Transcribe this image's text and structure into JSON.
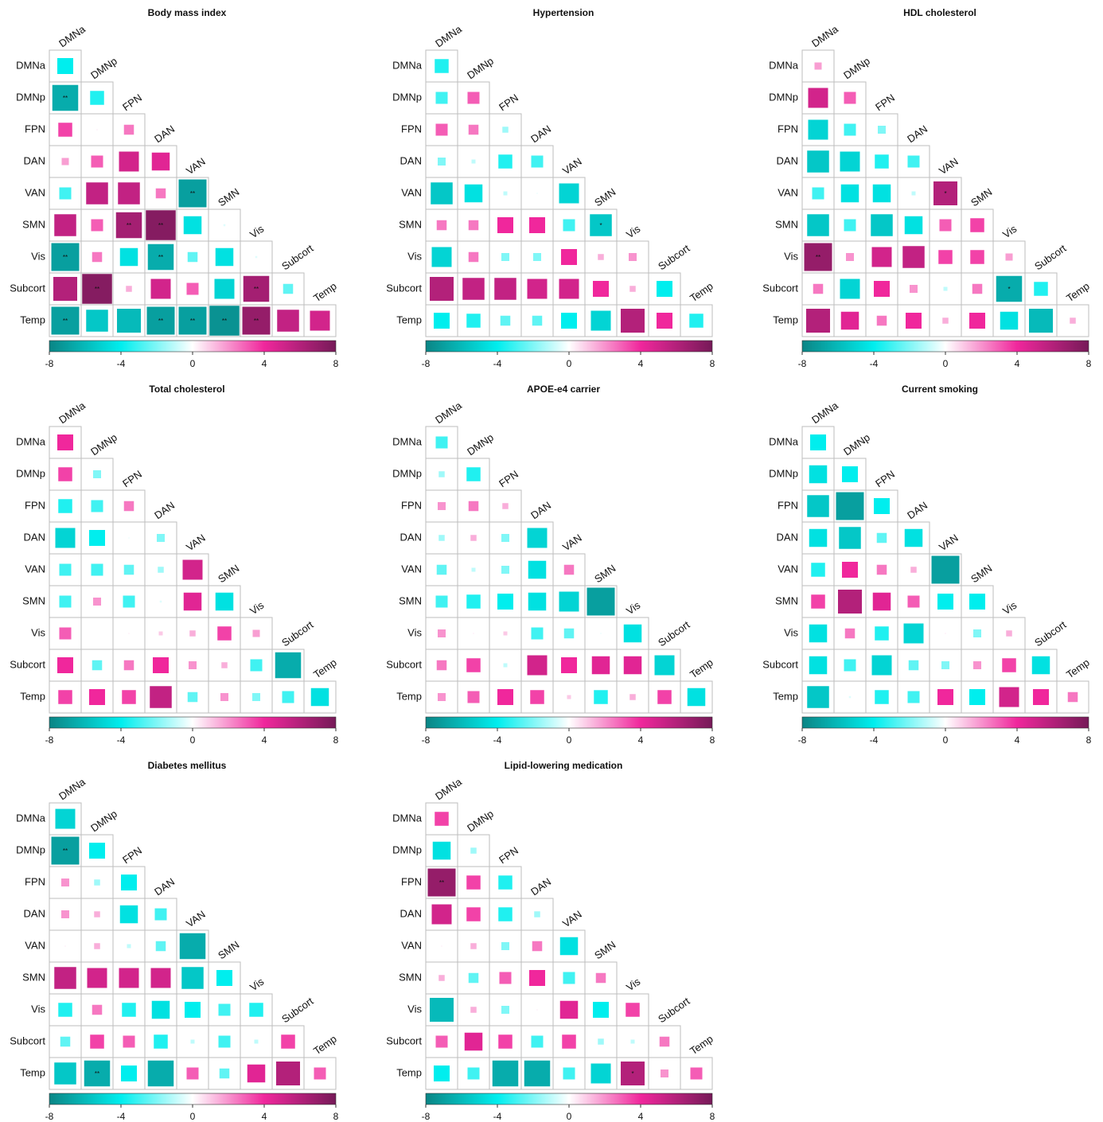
{
  "chart_data": [
    {
      "type": "heatmap",
      "title": "Body mass index",
      "labels": [
        "DMNa",
        "DMNp",
        "FPN",
        "DAN",
        "VAN",
        "SMN",
        "Vis",
        "Subcort",
        "Temp"
      ],
      "values": [
        [
          -4
        ],
        [
          -6.5,
          -3.5
        ],
        [
          3.5,
          0.3,
          2.5
        ],
        [
          1.8,
          3,
          5,
          4.5
        ],
        [
          -3,
          5.5,
          5.5,
          2.5,
          -7
        ],
        [
          5.5,
          3,
          6.5,
          7.5,
          -4.5,
          -0.5
        ],
        [
          -7,
          2.5,
          -4.5,
          -6.5,
          -2.5,
          -4.5,
          -0.5
        ],
        [
          6,
          7.5,
          1.5,
          5,
          3,
          -5,
          6.5,
          -2.5
        ],
        [
          -7,
          -5.5,
          -6,
          -7,
          -7,
          -7.5,
          7,
          5.5,
          5
        ]
      ],
      "annotations": [
        {
          "row": 1,
          "col": 0,
          "text": "**"
        },
        {
          "row": 4,
          "col": 4,
          "text": "**"
        },
        {
          "row": 5,
          "col": 2,
          "text": "**"
        },
        {
          "row": 5,
          "col": 3,
          "text": "**"
        },
        {
          "row": 6,
          "col": 0,
          "text": "**"
        },
        {
          "row": 6,
          "col": 3,
          "text": "**"
        },
        {
          "row": 7,
          "col": 1,
          "text": "**"
        },
        {
          "row": 7,
          "col": 6,
          "text": "**"
        },
        {
          "row": 8,
          "col": 0,
          "text": "**"
        },
        {
          "row": 8,
          "col": 3,
          "text": "**"
        },
        {
          "row": 8,
          "col": 4,
          "text": "**"
        },
        {
          "row": 8,
          "col": 5,
          "text": "**"
        },
        {
          "row": 8,
          "col": 6,
          "text": "**"
        }
      ],
      "zlim": [
        -8,
        8
      ],
      "zticks": [
        -8,
        -4,
        0,
        4,
        8
      ],
      "colorscale": [
        [
          -8,
          "#0b8585"
        ],
        [
          -4,
          "#00eeee"
        ],
        [
          0,
          "#ffffff"
        ],
        [
          4,
          "#f0279c"
        ],
        [
          8,
          "#761a58"
        ]
      ]
    },
    {
      "type": "heatmap",
      "title": "Hypertension",
      "labels": [
        "DMNa",
        "DMNp",
        "FPN",
        "DAN",
        "VAN",
        "SMN",
        "Vis",
        "Subcort",
        "Temp"
      ],
      "values": [
        [
          -3.5
        ],
        [
          -3,
          3
        ],
        [
          3,
          2.5,
          -1.5
        ],
        [
          -2,
          -1,
          -3.5,
          -3
        ],
        [
          -5.5,
          -4.5,
          -1,
          -0.3,
          -5
        ],
        [
          2.5,
          2.5,
          4,
          4,
          -3,
          -5.5
        ],
        [
          -5,
          2.5,
          -2,
          -2,
          4,
          1.5,
          2
        ],
        [
          6,
          5.5,
          5.5,
          5,
          5,
          4,
          1.5,
          -4
        ],
        [
          -4,
          -3.5,
          -2.5,
          -2.5,
          -4,
          -5,
          6,
          4,
          -3.5
        ]
      ],
      "annotations": [
        {
          "row": 5,
          "col": 5,
          "text": "*"
        }
      ],
      "zlim": [
        -8,
        8
      ],
      "zticks": [
        -8,
        -4,
        0,
        4,
        8
      ],
      "colorscale": [
        [
          -8,
          "#0b8585"
        ],
        [
          -4,
          "#00eeee"
        ],
        [
          0,
          "#ffffff"
        ],
        [
          4,
          "#f0279c"
        ],
        [
          8,
          "#761a58"
        ]
      ]
    },
    {
      "type": "heatmap",
      "title": "HDL cholesterol",
      "labels": [
        "DMNa",
        "DMNp",
        "FPN",
        "DAN",
        "VAN",
        "SMN",
        "Vis",
        "Subcort",
        "Temp"
      ],
      "values": [
        [
          1.8
        ],
        [
          5,
          3
        ],
        [
          -5,
          -3,
          -2
        ],
        [
          -5.5,
          -5,
          -3.5,
          -3
        ],
        [
          -3,
          -4.5,
          -4.5,
          -1,
          6
        ],
        [
          -5.5,
          -3,
          -5.5,
          -4.5,
          3,
          3.5
        ],
        [
          7,
          2,
          5,
          5.5,
          3.5,
          3.5,
          1.8
        ],
        [
          2.5,
          -5,
          4,
          2,
          -1,
          2.5,
          -6.5,
          -3.5
        ],
        [
          6,
          4.5,
          2.5,
          4,
          1.5,
          4,
          -4.5,
          -6,
          1.5
        ]
      ],
      "annotations": [
        {
          "row": 4,
          "col": 4,
          "text": "*"
        },
        {
          "row": 6,
          "col": 0,
          "text": "**"
        },
        {
          "row": 7,
          "col": 6,
          "text": "*"
        }
      ],
      "zlim": [
        -8,
        8
      ],
      "zticks": [
        -8,
        -4,
        0,
        4,
        8
      ],
      "colorscale": [
        [
          -8,
          "#0b8585"
        ],
        [
          -4,
          "#00eeee"
        ],
        [
          0,
          "#ffffff"
        ],
        [
          4,
          "#f0279c"
        ],
        [
          8,
          "#761a58"
        ]
      ]
    },
    {
      "type": "heatmap",
      "title": "Total cholesterol",
      "labels": [
        "DMNa",
        "DMNp",
        "FPN",
        "DAN",
        "VAN",
        "SMN",
        "Vis",
        "Subcort",
        "Temp"
      ],
      "values": [
        [
          4
        ],
        [
          3.5,
          -2
        ],
        [
          -3.5,
          -3,
          2.5
        ],
        [
          -5,
          -4,
          -0.3,
          -2
        ],
        [
          -3,
          -3,
          -2.5,
          -1.5,
          5
        ],
        [
          -3,
          2,
          -3,
          -0.5,
          4.5,
          -4.5
        ],
        [
          3,
          0,
          0.3,
          1,
          1.5,
          3.5,
          1.8
        ],
        [
          4,
          -2.5,
          2.5,
          4,
          2,
          1.5,
          -3,
          -6.5
        ],
        [
          3.5,
          4,
          3.5,
          5.5,
          -2.5,
          2,
          -2,
          -3,
          -4.5
        ]
      ],
      "annotations": [],
      "zlim": [
        -8,
        8
      ],
      "zticks": [
        -8,
        -4,
        0,
        4,
        8
      ],
      "colorscale": [
        [
          -8,
          "#0b8585"
        ],
        [
          -4,
          "#00eeee"
        ],
        [
          0,
          "#ffffff"
        ],
        [
          4,
          "#f0279c"
        ],
        [
          8,
          "#761a58"
        ]
      ]
    },
    {
      "type": "heatmap",
      "title": "APOE-e4 carrier",
      "labels": [
        "DMNa",
        "DMNp",
        "FPN",
        "DAN",
        "VAN",
        "SMN",
        "Vis",
        "Subcort",
        "Temp"
      ],
      "values": [
        [
          -3
        ],
        [
          -1.5,
          -3.5
        ],
        [
          2,
          2.5,
          1.5
        ],
        [
          -1.5,
          1.5,
          -2,
          -5
        ],
        [
          -2.5,
          -1,
          -2,
          -4.5,
          2.5
        ],
        [
          -3,
          -3.5,
          -4,
          -4.5,
          -5,
          -7
        ],
        [
          2,
          0.3,
          1,
          -3,
          -2.5,
          -0.3,
          -4.5
        ],
        [
          2.5,
          3.5,
          -1,
          5,
          4,
          4.5,
          4.5,
          -5
        ],
        [
          2,
          3,
          4,
          3.5,
          1,
          -3.5,
          1.5,
          3.5,
          -4.5
        ]
      ],
      "annotations": [],
      "zlim": [
        -8,
        8
      ],
      "zticks": [
        -8,
        -4,
        0,
        4,
        8
      ],
      "colorscale": [
        [
          -8,
          "#0b8585"
        ],
        [
          -4,
          "#00eeee"
        ],
        [
          0,
          "#ffffff"
        ],
        [
          4,
          "#f0279c"
        ],
        [
          8,
          "#761a58"
        ]
      ]
    },
    {
      "type": "heatmap",
      "title": "Current smoking",
      "labels": [
        "DMNa",
        "DMNp",
        "FPN",
        "DAN",
        "VAN",
        "SMN",
        "Vis",
        "Subcort",
        "Temp"
      ],
      "values": [
        [
          -4
        ],
        [
          -4.5,
          -4
        ],
        [
          -5.5,
          -7,
          -4
        ],
        [
          -4.5,
          -5.5,
          -2.5,
          -4.5
        ],
        [
          -3.5,
          4,
          2.5,
          1.5,
          -7
        ],
        [
          3.5,
          6,
          4.5,
          3,
          -4,
          -4
        ],
        [
          -4.5,
          2.5,
          -3.5,
          -5,
          0.3,
          -2,
          1.5
        ],
        [
          -4.5,
          -3,
          -5,
          -2.5,
          -2,
          2,
          3.5,
          -4.5
        ],
        [
          -5.5,
          -0.5,
          -3.5,
          -3,
          4,
          -4,
          5,
          4,
          2.5
        ]
      ],
      "annotations": [],
      "zlim": [
        -8,
        8
      ],
      "zticks": [
        -8,
        -4,
        0,
        4,
        8
      ],
      "colorscale": [
        [
          -8,
          "#0b8585"
        ],
        [
          -4,
          "#00eeee"
        ],
        [
          0,
          "#ffffff"
        ],
        [
          4,
          "#f0279c"
        ],
        [
          8,
          "#761a58"
        ]
      ]
    },
    {
      "type": "heatmap",
      "title": "Diabetes mellitus",
      "labels": [
        "DMNa",
        "DMNp",
        "FPN",
        "DAN",
        "VAN",
        "SMN",
        "Vis",
        "Subcort",
        "Temp"
      ],
      "values": [
        [
          -5
        ],
        [
          -7,
          -4
        ],
        [
          2,
          -1.5,
          -4
        ],
        [
          2,
          1.5,
          -4.5,
          -3
        ],
        [
          0.3,
          1.5,
          -1,
          -2.5,
          -6.5
        ],
        [
          5.5,
          5,
          5,
          5,
          -5.5,
          -4
        ],
        [
          -3.5,
          2.5,
          -3.5,
          -4.5,
          -4,
          -3,
          -3.5
        ],
        [
          -2.5,
          3.5,
          3,
          -3.5,
          -1,
          -3,
          -1,
          3.5
        ],
        [
          -5.5,
          -6.5,
          -4,
          -6.5,
          3,
          -2.5,
          4.5,
          6,
          3
        ]
      ],
      "annotations": [
        {
          "row": 1,
          "col": 0,
          "text": "**"
        },
        {
          "row": 8,
          "col": 1,
          "text": "**"
        }
      ],
      "zlim": [
        -8,
        8
      ],
      "zticks": [
        -8,
        -4,
        0,
        4,
        8
      ],
      "colorscale": [
        [
          -8,
          "#0b8585"
        ],
        [
          -4,
          "#00eeee"
        ],
        [
          0,
          "#ffffff"
        ],
        [
          4,
          "#f0279c"
        ],
        [
          8,
          "#761a58"
        ]
      ]
    },
    {
      "type": "heatmap",
      "title": "Lipid-lowering medication",
      "labels": [
        "DMNa",
        "DMNp",
        "FPN",
        "DAN",
        "VAN",
        "SMN",
        "Vis",
        "Subcort",
        "Temp"
      ],
      "values": [
        [
          3.5
        ],
        [
          -4.5,
          -1.5
        ],
        [
          7,
          3.5,
          -3.5
        ],
        [
          5,
          3.5,
          -3.5,
          -1.5
        ],
        [
          0.3,
          1.5,
          -2,
          2.5,
          -4.5
        ],
        [
          1.5,
          -2.5,
          3,
          4,
          -3,
          2.5
        ],
        [
          -6,
          1.5,
          -2,
          0.3,
          4.5,
          -4,
          3.5
        ],
        [
          3,
          4.5,
          3.5,
          -3,
          3.5,
          -1.5,
          -1,
          2.5
        ],
        [
          -4,
          -3,
          -6.5,
          -6.5,
          -3,
          -5,
          6,
          2,
          3
        ]
      ],
      "annotations": [
        {
          "row": 2,
          "col": 0,
          "text": "**"
        },
        {
          "row": 8,
          "col": 6,
          "text": "*"
        }
      ],
      "zlim": [
        -8,
        8
      ],
      "zticks": [
        -8,
        -4,
        0,
        4,
        8
      ],
      "colorscale": [
        [
          -8,
          "#0b8585"
        ],
        [
          -4,
          "#00eeee"
        ],
        [
          0,
          "#ffffff"
        ],
        [
          4,
          "#f0279c"
        ],
        [
          8,
          "#761a58"
        ]
      ]
    }
  ]
}
